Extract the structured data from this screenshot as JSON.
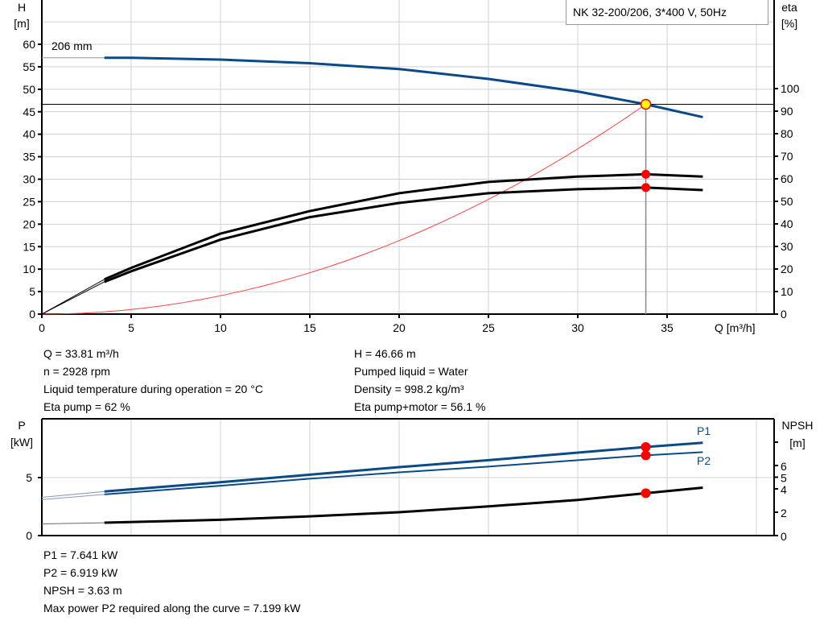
{
  "title": "NK 32-200/206, 3*400 V, 50Hz",
  "colors": {
    "head": "#0a4a87",
    "eta": "#000000",
    "system": "#ff4040",
    "point": "#ff0000",
    "duty_point_fill": "#ffff00",
    "grid": "#d0d0d0"
  },
  "chart_data": [
    {
      "type": "line",
      "xlabel": "Q [m³/h]",
      "xlim": [
        0,
        41
      ],
      "xticks": [
        0,
        5,
        10,
        15,
        20,
        25,
        30,
        35
      ],
      "ylabel_left": [
        "H",
        "[m]"
      ],
      "ylim_left": [
        0,
        65
      ],
      "yticks_left": [
        0,
        5,
        10,
        15,
        20,
        25,
        30,
        35,
        40,
        45,
        50,
        55,
        60
      ],
      "ylabel_right": [
        "eta",
        "[%]"
      ],
      "ylim_right": [
        0,
        100
      ],
      "yticks_right": [
        0,
        10,
        20,
        30,
        40,
        50,
        60,
        70,
        80,
        90,
        100
      ],
      "grid": true,
      "annotation": "206 mm",
      "series": [
        {
          "id": "head",
          "axis": "left",
          "color": "#0a4a87",
          "x": [
            0,
            3.5,
            5,
            10,
            15,
            20,
            25,
            30,
            33.81,
            37
          ],
          "y": [
            57,
            57,
            57,
            56.6,
            55.8,
            54.5,
            52.3,
            49.5,
            46.66,
            43.8
          ]
        },
        {
          "id": "eta-pump",
          "axis": "right",
          "color": "#000000",
          "x": [
            0,
            3.5,
            5,
            10,
            15,
            20,
            25,
            30,
            33.81,
            37
          ],
          "y": [
            0,
            15.4,
            20.5,
            35.7,
            45.7,
            53.6,
            58.6,
            61,
            62,
            61
          ]
        },
        {
          "id": "eta-pump-motor",
          "axis": "right",
          "color": "#000000",
          "x": [
            0,
            3.5,
            5,
            10,
            15,
            20,
            25,
            30,
            33.81,
            37
          ],
          "y": [
            0,
            14.3,
            19,
            33,
            43,
            49.3,
            53.6,
            55.4,
            56.1,
            55
          ]
        },
        {
          "id": "system-curve",
          "axis": "left",
          "color": "#ff4040",
          "type": "quadratic",
          "k_point": [
            33.81,
            46.66
          ]
        }
      ],
      "duty_point": {
        "Q": 33.81,
        "H": 46.66,
        "eta_pump": 62,
        "eta_pump_motor": 56.1
      }
    },
    {
      "type": "line",
      "xlim": [
        0,
        41
      ],
      "ylabel_left": [
        "P",
        "[kW]"
      ],
      "ylim_left": [
        0,
        10
      ],
      "yticks_left": [
        0,
        5
      ],
      "ylabel_right": [
        "NPSH",
        "[m]"
      ],
      "ylim_right": [
        0,
        10
      ],
      "yticks_right": [
        0,
        2,
        4,
        5,
        6,
        8
      ],
      "yticklabels_right": [
        "0",
        "2",
        "4",
        "5",
        "6",
        ""
      ],
      "series": [
        {
          "id": "P1",
          "name": "P1",
          "axis": "left",
          "color": "#0a4a87",
          "x": [
            0,
            3.5,
            10,
            15,
            20,
            25,
            30,
            33.81,
            37
          ],
          "y": [
            3.3,
            3.8,
            4.6,
            5.25,
            5.9,
            6.5,
            7.15,
            7.641,
            8.0
          ]
        },
        {
          "id": "P2",
          "name": "P2",
          "axis": "left",
          "color": "#0a4a87",
          "x": [
            0,
            3.5,
            10,
            15,
            20,
            25,
            30,
            33.81,
            37
          ],
          "y": [
            3.1,
            3.55,
            4.3,
            4.9,
            5.45,
            5.95,
            6.5,
            6.919,
            7.2
          ]
        },
        {
          "id": "NPSH",
          "axis": "right",
          "color": "#000000",
          "x": [
            0,
            3.5,
            10,
            15,
            20,
            25,
            30,
            33.81,
            37
          ],
          "y": [
            1.0,
            1.1,
            1.35,
            1.65,
            2.0,
            2.5,
            3.05,
            3.63,
            4.1
          ]
        }
      ],
      "duty_point": {
        "P1": 7.641,
        "P2": 6.919,
        "NPSH": 3.63
      }
    }
  ],
  "info_top_left": [
    "Q = 33.81 m³/h",
    "n = 2928 rpm",
    "Liquid temperature during operation = 20 °C",
    "Eta pump = 62 %"
  ],
  "info_top_right": [
    "H = 46.66 m",
    "Pumped liquid = Water",
    "Density = 998.2 kg/m³",
    "Eta pump+motor = 56.1 %"
  ],
  "info_bottom": [
    "P1 = 7.641 kW",
    "P2 = 6.919 kW",
    "NPSH = 3.63 m",
    "Max power P2 required along the curve = 7.199 kW"
  ]
}
